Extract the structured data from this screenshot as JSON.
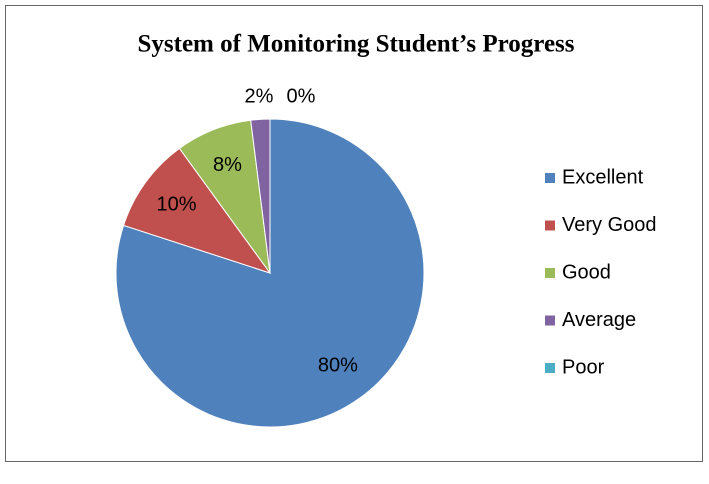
{
  "chart_data": {
    "type": "pie",
    "title": "System of Monitoring Student’s Progress",
    "categories": [
      "Excellent",
      "Very Good",
      "Good",
      "Average",
      "Poor"
    ],
    "values": [
      80,
      10,
      8,
      2,
      0
    ],
    "value_labels": [
      "80%",
      "10%",
      "8%",
      "2%",
      "0%"
    ],
    "colors": [
      "#4f81bd",
      "#c0504d",
      "#9bbb59",
      "#8064a2",
      "#4bacc6"
    ],
    "legend": "right"
  }
}
